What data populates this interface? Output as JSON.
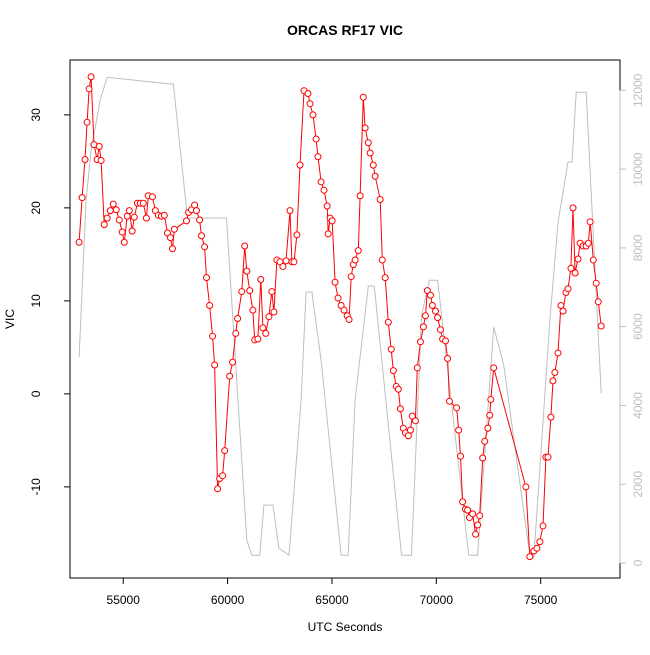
{
  "chart_data": {
    "type": "line",
    "title": "ORCAS RF17 VIC",
    "x_label": "UTC Seconds",
    "y_label": "VIC",
    "xlim": [
      52450,
      78800
    ],
    "ylim": [
      -19.8,
      35.9
    ],
    "y2lim": [
      -380,
      12770
    ],
    "xticks": [
      55000,
      60000,
      65000,
      70000,
      75000
    ],
    "yticks": [
      -10,
      0,
      10,
      20,
      30
    ],
    "y2ticks": [
      0,
      2000,
      4000,
      6000,
      8000,
      10000,
      12000
    ],
    "y2_color": "#bebebe",
    "series": [
      {
        "color": "#ff0000",
        "markers": true,
        "x": [
          52885,
          53030,
          53170,
          53270,
          53365,
          53460,
          53600,
          53750,
          53850,
          53940,
          54090,
          54230,
          54380,
          54520,
          54665,
          54810,
          54950,
          55050,
          55190,
          55290,
          55430,
          55530,
          55680,
          55820,
          55960,
          56110,
          56200,
          56400,
          56540,
          56685,
          56830,
          56970,
          57120,
          57260,
          57360,
          57450,
          58030,
          58130,
          58270,
          58420,
          58510,
          58660,
          58750,
          58900,
          58990,
          59140,
          59280,
          59380,
          59520,
          59620,
          59760,
          59860,
          60100,
          60240,
          60390,
          60480,
          60680,
          60820,
          60920,
          61060,
          61210,
          61300,
          61450,
          61590,
          61690,
          61830,
          61980,
          62120,
          62220,
          62360,
          62510,
          62650,
          62800,
          62990,
          63080,
          63180,
          63320,
          63470,
          63660,
          63850,
          63950,
          64090,
          64240,
          64330,
          64480,
          64620,
          64770,
          64820,
          64910,
          65010,
          65150,
          65290,
          65440,
          65580,
          65730,
          65820,
          65920,
          66020,
          66110,
          66260,
          66350,
          66500,
          66590,
          66740,
          66830,
          66980,
          67070,
          67310,
          67410,
          67550,
          67700,
          67840,
          67940,
          68080,
          68180,
          68280,
          68420,
          68520,
          68660,
          68760,
          68850,
          69000,
          69090,
          69240,
          69380,
          69480,
          69570,
          69720,
          69810,
          69960,
          70060,
          70200,
          70300,
          70440,
          70540,
          70630,
          70970,
          71070,
          71160,
          71260,
          71400,
          71500,
          71590,
          71740,
          71880,
          71980,
          72080,
          72220,
          72320,
          72470,
          72560,
          72610,
          72750,
          74290,
          74480,
          74670,
          74820,
          74960,
          75110,
          75250,
          75350,
          75490,
          75590,
          75680,
          75830,
          75970,
          76070,
          76210,
          76310,
          76450,
          76550,
          76650,
          76790,
          76890,
          77030,
          77180,
          77280,
          77370,
          77520,
          77660,
          77760,
          77900
        ],
        "values": [
          16.3,
          21.1,
          25.2,
          29.2,
          32.8,
          34.1,
          26.8,
          25.2,
          26.6,
          25.1,
          18.2,
          18.9,
          19.7,
          20.4,
          19.8,
          18.7,
          17.4,
          16.3,
          19.1,
          19.7,
          17.5,
          19.0,
          20.5,
          20.5,
          20.5,
          18.9,
          21.3,
          21.2,
          19.7,
          19.2,
          19.1,
          19.2,
          17.3,
          16.8,
          15.6,
          17.7,
          18.6,
          19.5,
          19.8,
          20.3,
          19.7,
          18.7,
          17.0,
          15.8,
          12.5,
          9.5,
          6.2,
          3.1,
          -10.2,
          -9.1,
          -8.8,
          -6.1,
          1.9,
          3.4,
          6.5,
          8.1,
          11.0,
          15.9,
          13.2,
          11.1,
          9.0,
          5.8,
          5.9,
          12.3,
          7.1,
          6.5,
          8.3,
          11.0,
          8.8,
          14.4,
          14.2,
          13.7,
          14.3,
          19.7,
          14.2,
          14.2,
          17.1,
          24.6,
          32.6,
          32.3,
          31.2,
          30.0,
          27.4,
          25.5,
          22.8,
          21.9,
          20.2,
          17.2,
          18.9,
          18.6,
          12.0,
          10.3,
          9.5,
          9.0,
          8.4,
          8.0,
          12.6,
          13.9,
          14.4,
          15.4,
          21.3,
          31.9,
          28.6,
          27.0,
          25.9,
          24.6,
          23.4,
          20.9,
          14.4,
          12.5,
          7.7,
          4.8,
          2.5,
          0.8,
          0.5,
          -1.6,
          -3.7,
          -4.2,
          -4.5,
          -3.9,
          -2.4,
          -2.9,
          2.8,
          5.6,
          7.2,
          8.4,
          11.1,
          10.6,
          9.5,
          8.9,
          8.2,
          6.9,
          5.9,
          5.7,
          3.8,
          -0.8,
          -1.5,
          -3.9,
          -6.7,
          -11.6,
          -12.4,
          -12.5,
          -13.3,
          -12.9,
          -15.1,
          -14.1,
          -13.1,
          -6.9,
          -5.1,
          -3.7,
          -2.3,
          -0.6,
          2.8,
          -10.0,
          -17.5,
          -16.9,
          -16.6,
          -15.9,
          -14.2,
          -6.8,
          -6.8,
          -2.5,
          1.4,
          2.3,
          4.4,
          9.5,
          8.9,
          10.9,
          11.3,
          13.5,
          20.0,
          13.0,
          14.5,
          16.2,
          15.9,
          15.9,
          16.2,
          18.5,
          14.4,
          11.9,
          9.9,
          7.3
        ]
      },
      {
        "color": "#bebebe",
        "axis": "y2",
        "markers": false,
        "x": [
          52885,
          53220,
          53460,
          53890,
          54230,
          57260,
          57400,
          58080,
          59950,
          60920,
          61160,
          61540,
          61740,
          62170,
          62460,
          62940,
          63520,
          63760,
          64040,
          64480,
          65440,
          65780,
          66110,
          66740,
          67030,
          68330,
          68810,
          69290,
          69670,
          70060,
          71550,
          71980,
          72750,
          73230,
          74430,
          74670,
          75440,
          75830,
          76310,
          76500,
          76700,
          77180,
          77900
        ],
        "values": [
          5230,
          9210,
          10480,
          11750,
          12330,
          12160,
          12160,
          8760,
          8760,
          580,
          200,
          200,
          1470,
          1470,
          380,
          200,
          4140,
          6880,
          6880,
          5150,
          200,
          200,
          4140,
          7030,
          7030,
          200,
          200,
          6290,
          7180,
          7180,
          200,
          200,
          5990,
          5030,
          380,
          130,
          6170,
          8650,
          10180,
          10180,
          11950,
          11950,
          4310
        ]
      }
    ]
  }
}
